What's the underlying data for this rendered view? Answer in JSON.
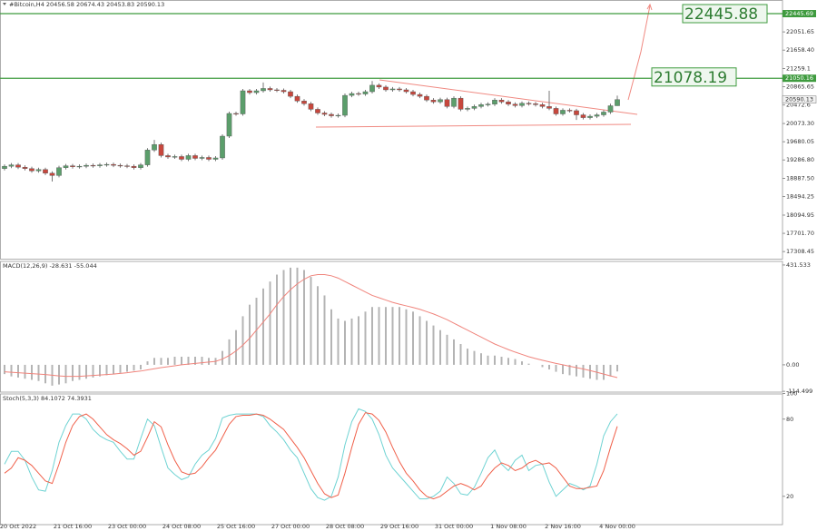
{
  "chart_data": [
    {
      "type": "candlestick",
      "title": "#Bitcoin,H4",
      "colors": {
        "up": "#5b9e6b",
        "down": "#c8473d",
        "level": "#3f9b3f"
      },
      "categories": [
        null,
        null,
        "20 Oct 2022",
        null,
        null,
        null,
        null,
        null,
        null,
        null,
        "21 Oct 16:00",
        null,
        null,
        null,
        null,
        null,
        null,
        null,
        "23 Oct 00:00",
        null,
        null,
        null,
        null,
        null,
        null,
        null,
        "24 Oct 08:00",
        null,
        null,
        null,
        null,
        null,
        null,
        null,
        "25 Oct 16:00",
        null,
        null,
        null,
        null,
        null,
        null,
        null,
        "27 Oct 00:00",
        null,
        null,
        null,
        null,
        null,
        null,
        null,
        "28 Oct 08:00",
        null,
        null,
        null,
        null,
        null,
        null,
        null,
        "29 Oct 16:00",
        null,
        null,
        null,
        null,
        null,
        null,
        null,
        "31 Oct 00:00",
        null,
        null,
        null,
        null,
        null,
        null,
        null,
        "1 Nov 08:00",
        null,
        null,
        null,
        null,
        null,
        null,
        null,
        "2 Nov 16:00",
        null,
        null,
        null,
        null,
        null,
        null,
        null,
        "4 Nov 00:00"
      ],
      "open": [
        19100,
        19150,
        19180,
        19130,
        19100,
        19050,
        19080,
        19000,
        18950,
        19120,
        19160,
        19140,
        19150,
        19170,
        19160,
        19180,
        19190,
        19170,
        19160,
        19150,
        19120,
        19180,
        19500,
        19620,
        19380,
        19350,
        19360,
        19300,
        19380,
        19320,
        19340,
        19300,
        19330,
        19800,
        20290,
        20280,
        20780,
        20740,
        20780,
        20830,
        20800,
        20790,
        20760,
        20660,
        20560,
        20500,
        20380,
        20300,
        20270,
        20240,
        20250,
        20680,
        20720,
        20710,
        20760,
        20900,
        20860,
        20800,
        20820,
        20800,
        20760,
        20700,
        20660,
        20580,
        20540,
        20590,
        20440,
        20620,
        20380,
        20400,
        20440,
        20480,
        20490,
        20580,
        20540,
        20490,
        20460,
        20510,
        20500,
        20480,
        20440,
        20400,
        20280,
        20360,
        20350,
        20260,
        20200,
        20230,
        20260,
        20320,
        20456.58
      ],
      "high": [
        19190,
        19220,
        19220,
        19170,
        19140,
        19120,
        19120,
        19040,
        19160,
        19200,
        19200,
        19190,
        19210,
        19210,
        19220,
        19230,
        19230,
        19210,
        19200,
        19190,
        19220,
        19540,
        19720,
        19660,
        19420,
        19400,
        19400,
        19420,
        19420,
        19380,
        19380,
        19370,
        19840,
        20330,
        20330,
        20820,
        20820,
        20820,
        20960,
        20870,
        20840,
        20830,
        20800,
        20700,
        20600,
        20540,
        20420,
        20340,
        20310,
        20290,
        20720,
        20760,
        20760,
        20800,
        20990,
        20940,
        20900,
        20860,
        20860,
        20840,
        20800,
        20740,
        20700,
        20620,
        20630,
        20630,
        20660,
        20660,
        20440,
        20480,
        20520,
        20530,
        20620,
        20620,
        20580,
        20530,
        20550,
        20550,
        20540,
        20520,
        20780,
        20440,
        20400,
        20400,
        20390,
        20300,
        20270,
        20300,
        20360,
        20500,
        20674.43
      ],
      "low": [
        19060,
        19110,
        19090,
        19060,
        19010,
        19010,
        18960,
        18820,
        18910,
        19080,
        19100,
        19100,
        19110,
        19120,
        19120,
        19140,
        19130,
        19120,
        19110,
        19080,
        19080,
        19140,
        19460,
        19340,
        19310,
        19310,
        19260,
        19260,
        19280,
        19280,
        19260,
        19260,
        19290,
        19760,
        20240,
        20240,
        20700,
        20700,
        20740,
        20760,
        20750,
        20720,
        20620,
        20520,
        20460,
        20340,
        20260,
        20230,
        20200,
        20200,
        20210,
        20640,
        20670,
        20670,
        20720,
        20820,
        20760,
        20760,
        20760,
        20720,
        20660,
        20620,
        20540,
        20500,
        20500,
        20400,
        20400,
        20340,
        20340,
        20360,
        20400,
        20440,
        20450,
        20500,
        20450,
        20420,
        20420,
        20460,
        20440,
        20400,
        20360,
        20240,
        20240,
        20310,
        20150,
        20160,
        20160,
        20190,
        20220,
        20280,
        20453.83
      ],
      "close": [
        19150,
        19180,
        19130,
        19100,
        19050,
        19080,
        19000,
        18950,
        19120,
        19160,
        19140,
        19150,
        19170,
        19160,
        19180,
        19190,
        19170,
        19160,
        19150,
        19120,
        19180,
        19500,
        19620,
        19380,
        19350,
        19360,
        19300,
        19380,
        19320,
        19340,
        19300,
        19330,
        19800,
        20290,
        20280,
        20780,
        20740,
        20780,
        20830,
        20800,
        20790,
        20760,
        20660,
        20560,
        20500,
        20380,
        20300,
        20270,
        20240,
        20250,
        20680,
        20720,
        20710,
        20760,
        20900,
        20860,
        20800,
        20820,
        20800,
        20760,
        20700,
        20660,
        20580,
        20540,
        20590,
        20440,
        20620,
        20380,
        20400,
        20440,
        20480,
        20490,
        20580,
        20540,
        20490,
        20460,
        20510,
        20500,
        20480,
        20440,
        20400,
        20280,
        20360,
        20350,
        20260,
        20200,
        20230,
        20260,
        20320,
        20456.58,
        20590.13
      ],
      "ylim": [
        17154,
        22740
      ],
      "yticks": [
        22051.65,
        {
          "value": 21658.4,
          "label": "21658.40"
        },
        21259.1,
        20865.65,
        20472.6,
        {
          "value": 20073.3,
          "label": "20073.30"
        },
        19680.05,
        {
          "value": 19286.8,
          "label": "19286.80"
        },
        {
          "value": 18887.5,
          "label": "18887.50"
        },
        18494.25,
        18094.95,
        {
          "value": 17701.7,
          "label": "17701.70"
        },
        17308.45
      ],
      "axis_tags": [
        22445.69,
        21050.16
      ],
      "annotations": [
        22445.88,
        21078.19
      ]
    },
    {
      "type": "macd",
      "title": "MACD(12,26,9)",
      "colors": {
        "histogram": "#b4b4b4",
        "signal": "#f0847c"
      },
      "histogram": [
        -40,
        -50,
        -55,
        -60,
        -65,
        -70,
        -80,
        -90,
        -85,
        -80,
        -70,
        -65,
        -60,
        -55,
        -50,
        -45,
        -40,
        -35,
        -30,
        -25,
        -20,
        15,
        30,
        30,
        30,
        35,
        35,
        35,
        35,
        35,
        30,
        30,
        60,
        110,
        150,
        210,
        260,
        290,
        330,
        360,
        390,
        410,
        420,
        420,
        410,
        380,
        340,
        300,
        240,
        200,
        190,
        200,
        210,
        230,
        250,
        250,
        250,
        250,
        250,
        240,
        230,
        210,
        190,
        170,
        150,
        130,
        110,
        90,
        70,
        60,
        50,
        40,
        40,
        35,
        30,
        25,
        15,
        5,
        0,
        -10,
        -20,
        -30,
        -40,
        -45,
        -50,
        -55,
        -60,
        -65,
        -65,
        -50,
        -28.631
      ],
      "signal": [
        -30,
        -32,
        -34,
        -36,
        -38,
        -40,
        -42,
        -45,
        -48,
        -50,
        -50,
        -50,
        -48,
        -46,
        -44,
        -42,
        -40,
        -37,
        -34,
        -30,
        -27,
        -22,
        -17,
        -12,
        -8,
        -4,
        0,
        3,
        6,
        9,
        12,
        15,
        25,
        40,
        60,
        85,
        115,
        150,
        185,
        220,
        260,
        295,
        325,
        350,
        370,
        385,
        390,
        390,
        385,
        375,
        360,
        345,
        330,
        315,
        300,
        290,
        280,
        270,
        262,
        255,
        248,
        240,
        230,
        220,
        208,
        195,
        180,
        165,
        150,
        135,
        120,
        105,
        90,
        78,
        66,
        55,
        45,
        35,
        27,
        20,
        13,
        6,
        0,
        -6,
        -12,
        -18,
        -25,
        -32,
        -40,
        -48,
        -55.044
      ],
      "ylim": [
        -118,
        447
      ],
      "yticks": [
        431.533,
        {
          "value": 0,
          "label": "0.00"
        },
        -114.499
      ]
    },
    {
      "type": "stochastic",
      "title": "Stoch(5,3,3)",
      "colors": {
        "main": "#6fd3d3",
        "signal": "#f0604a"
      },
      "main": [
        45,
        55,
        55,
        48,
        35,
        25,
        24,
        40,
        62,
        75,
        84,
        84,
        80,
        72,
        67,
        64,
        62,
        55,
        49,
        49,
        65,
        80,
        75,
        58,
        42,
        37,
        33,
        35,
        45,
        52,
        56,
        65,
        81,
        83,
        84,
        84,
        84,
        84,
        82,
        75,
        70,
        64,
        56,
        50,
        38,
        26,
        19,
        17,
        20,
        35,
        60,
        78,
        88,
        86,
        80,
        68,
        52,
        42,
        36,
        30,
        24,
        18,
        18,
        20,
        24,
        35,
        30,
        22,
        21,
        27,
        38,
        50,
        56,
        45,
        40,
        48,
        52,
        40,
        44,
        45,
        31,
        20,
        25,
        30,
        28,
        25,
        28,
        45,
        67,
        78,
        84.1072
      ],
      "signal": [
        38,
        42,
        50,
        48,
        44,
        38,
        32,
        30,
        45,
        62,
        75,
        82,
        84,
        80,
        74,
        68,
        64,
        61,
        57,
        52,
        55,
        66,
        78,
        74,
        60,
        48,
        39,
        37,
        38,
        43,
        50,
        56,
        66,
        76,
        82,
        83,
        83,
        84,
        83,
        80,
        76,
        72,
        65,
        58,
        50,
        40,
        30,
        22,
        19,
        21,
        38,
        58,
        76,
        85,
        84,
        79,
        70,
        58,
        47,
        38,
        32,
        25,
        20,
        18,
        20,
        24,
        28,
        30,
        28,
        25,
        28,
        36,
        42,
        46,
        44,
        40,
        42,
        46,
        48,
        45,
        46,
        42,
        35,
        28,
        26,
        26,
        27,
        28,
        40,
        58,
        74.3931
      ],
      "ylim": [
        -2,
        101
      ],
      "yticks": [
        100,
        80,
        20
      ]
    }
  ]
}
